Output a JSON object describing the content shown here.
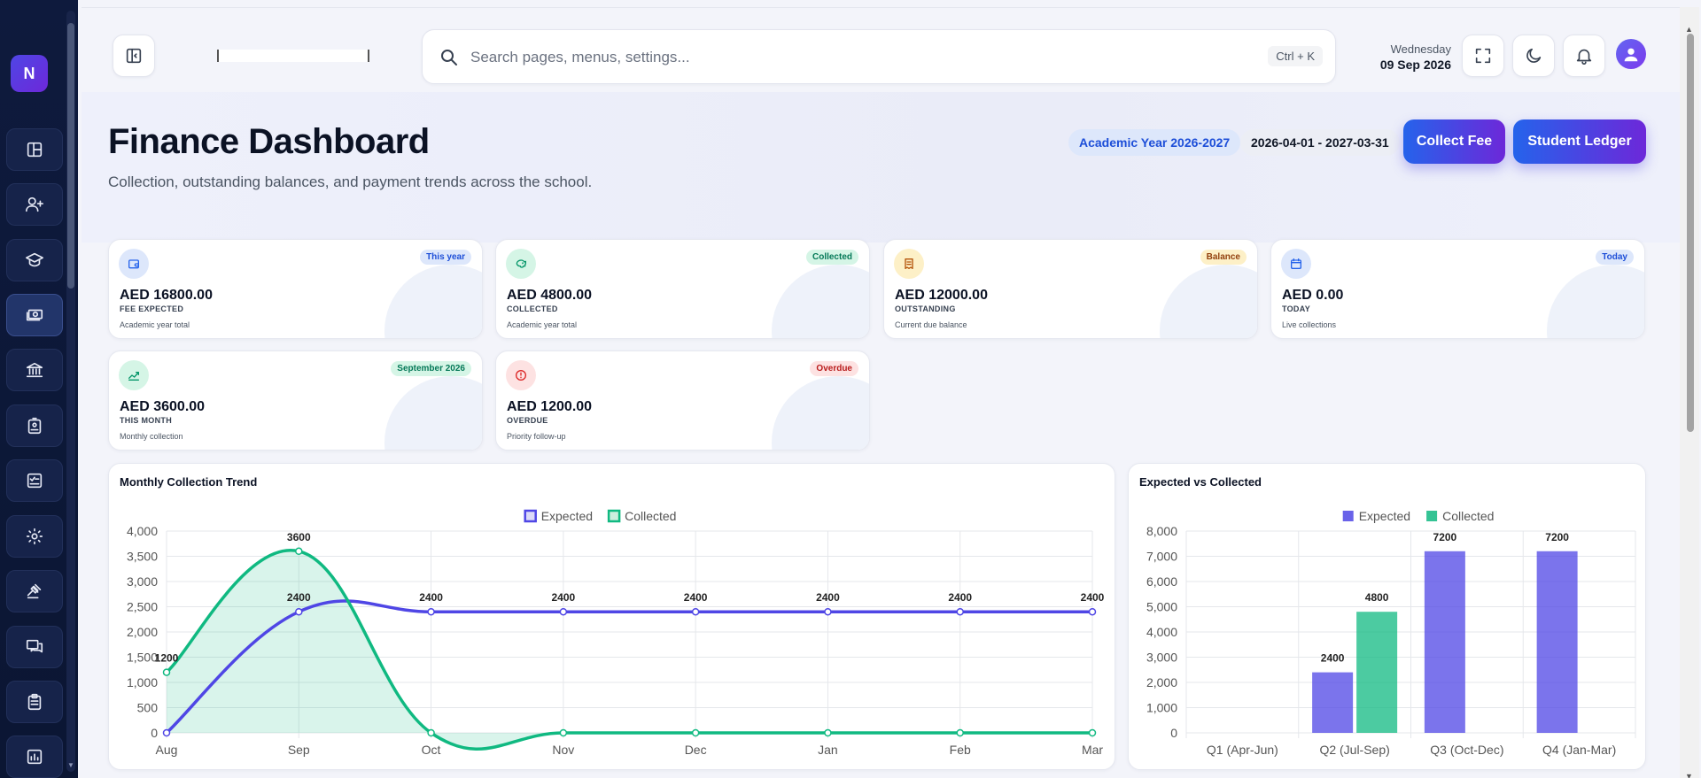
{
  "app": {
    "logo_letter": "N"
  },
  "header": {
    "search_placeholder": "Search pages, menus, settings...",
    "search_shortcut": "Ctrl + K",
    "date_day": "Wednesday",
    "date_full": "09 Sep 2026"
  },
  "sidebar": {
    "items": [
      {
        "icon": "layout-grid-icon"
      },
      {
        "icon": "user-plus-icon"
      },
      {
        "icon": "graduation-cap-icon"
      },
      {
        "icon": "money-icon",
        "active": true
      },
      {
        "icon": "bank-icon"
      },
      {
        "icon": "id-badge-icon"
      },
      {
        "icon": "checklist-icon"
      },
      {
        "icon": "gear-icon"
      },
      {
        "icon": "gavel-icon"
      },
      {
        "icon": "chat-icon"
      },
      {
        "icon": "clipboard-icon"
      },
      {
        "icon": "report-icon"
      }
    ]
  },
  "hero": {
    "title": "Finance Dashboard",
    "subtitle": "Collection, outstanding balances, and payment trends across the school.",
    "academic_year": "Academic Year 2026-2027",
    "date_range": "2026-04-01 - 2027-03-31",
    "collect_fee_label": "Collect Fee",
    "student_ledger_label": "Student Ledger"
  },
  "cards": [
    {
      "badge": "This year",
      "amount": "AED 16800.00",
      "label": "FEE EXPECTED",
      "note": "Academic year total",
      "icon": "wallet-icon",
      "tone": "blue"
    },
    {
      "badge": "Collected",
      "amount": "AED 4800.00",
      "label": "COLLECTED",
      "note": "Academic year total",
      "icon": "piggy-bank-icon",
      "tone": "green"
    },
    {
      "badge": "Balance",
      "amount": "AED 12000.00",
      "label": "OUTSTANDING",
      "note": "Current due balance",
      "icon": "receipt-icon",
      "tone": "amber"
    },
    {
      "badge": "Today",
      "amount": "AED 0.00",
      "label": "TODAY",
      "note": "Live collections",
      "icon": "calendar-icon",
      "tone": "blue"
    },
    {
      "badge": "September 2026",
      "amount": "AED 3600.00",
      "label": "THIS MONTH",
      "note": "Monthly collection",
      "icon": "chart-line-icon",
      "tone": "green"
    },
    {
      "badge": "Overdue",
      "amount": "AED 1200.00",
      "label": "OVERDUE",
      "note": "Priority follow-up",
      "icon": "alert-circle-icon",
      "tone": "red"
    }
  ],
  "colors": {
    "expected": "#4f46e5",
    "collected": "#10b981",
    "accent": "#4f46e5"
  },
  "chart_data": [
    {
      "type": "line",
      "title": "Monthly Collection Trend",
      "x": [
        "Aug",
        "Sep",
        "Oct",
        "Nov",
        "Dec",
        "Jan",
        "Feb",
        "Mar"
      ],
      "series": [
        {
          "name": "Expected",
          "values": [
            0,
            2400,
            2400,
            2400,
            2400,
            2400,
            2400,
            2400
          ],
          "labels": [
            "",
            "2400",
            "2400",
            "2400",
            "2400",
            "2400",
            "2400",
            "2400"
          ]
        },
        {
          "name": "Collected",
          "values": [
            1200,
            3600,
            0,
            0,
            0,
            0,
            0,
            0
          ],
          "labels": [
            "1200",
            "3600",
            "",
            "",
            "",
            "",
            "",
            ""
          ],
          "fill": true
        }
      ],
      "ylim": [
        0,
        4000
      ],
      "yticks": [
        "0",
        "500",
        "1,000",
        "1,500",
        "2,000",
        "2,500",
        "3,000",
        "3,500",
        "4,000"
      ],
      "legend": "top-center",
      "grid": true
    },
    {
      "type": "bar",
      "title": "Expected vs Collected",
      "categories": [
        "Q1 (Apr-Jun)",
        "Q2 (Jul-Sep)",
        "Q3 (Oct-Dec)",
        "Q4 (Jan-Mar)"
      ],
      "series": [
        {
          "name": "Expected",
          "values": [
            0,
            2400,
            7200,
            7200
          ],
          "labels": [
            "",
            "2400",
            "7200",
            "7200"
          ]
        },
        {
          "name": "Collected",
          "values": [
            0,
            4800,
            0,
            0
          ],
          "labels": [
            "",
            "4800",
            "",
            ""
          ]
        }
      ],
      "ylim": [
        0,
        8000
      ],
      "yticks": [
        "0",
        "1,000",
        "2,000",
        "3,000",
        "4,000",
        "5,000",
        "6,000",
        "7,000",
        "8,000"
      ],
      "legend": "top-center",
      "grid": true
    }
  ]
}
